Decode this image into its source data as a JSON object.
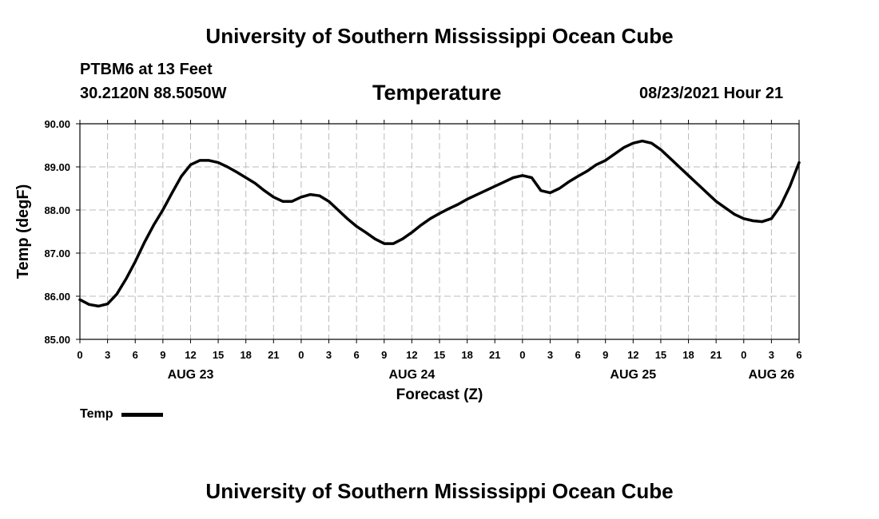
{
  "header": {
    "title_top": "University of Southern Mississippi Ocean Cube",
    "station": "PTBM6 at 13 Feet",
    "coords": "30.2120N  88.5050W",
    "chart_title": "Temperature",
    "datetime": "08/23/2021 Hour 21"
  },
  "footer": {
    "title_bottom": "University of Southern Mississippi Ocean Cube"
  },
  "legend": {
    "label": "Temp"
  },
  "chart_data": {
    "type": "line",
    "title": "Temperature",
    "xlabel": "Forecast (Z)",
    "ylabel": "Temp (degF)",
    "x_unit": "hours since AUG 23 00Z",
    "xlim": [
      0,
      78
    ],
    "ylim": [
      85,
      90
    ],
    "grid": true,
    "y_ticks": [
      "85.00",
      "86.00",
      "87.00",
      "88.00",
      "89.00",
      "90.00"
    ],
    "x_ticks": [
      {
        "x": 0,
        "label": "0"
      },
      {
        "x": 3,
        "label": "3"
      },
      {
        "x": 6,
        "label": "6"
      },
      {
        "x": 9,
        "label": "9"
      },
      {
        "x": 12,
        "label": "12"
      },
      {
        "x": 15,
        "label": "15"
      },
      {
        "x": 18,
        "label": "18"
      },
      {
        "x": 21,
        "label": "21"
      },
      {
        "x": 24,
        "label": "0"
      },
      {
        "x": 27,
        "label": "3"
      },
      {
        "x": 30,
        "label": "6"
      },
      {
        "x": 33,
        "label": "9"
      },
      {
        "x": 36,
        "label": "12"
      },
      {
        "x": 39,
        "label": "15"
      },
      {
        "x": 42,
        "label": "18"
      },
      {
        "x": 45,
        "label": "21"
      },
      {
        "x": 48,
        "label": "0"
      },
      {
        "x": 51,
        "label": "3"
      },
      {
        "x": 54,
        "label": "6"
      },
      {
        "x": 57,
        "label": "9"
      },
      {
        "x": 60,
        "label": "12"
      },
      {
        "x": 63,
        "label": "15"
      },
      {
        "x": 66,
        "label": "18"
      },
      {
        "x": 69,
        "label": "21"
      },
      {
        "x": 72,
        "label": "0"
      },
      {
        "x": 75,
        "label": "3"
      },
      {
        "x": 78,
        "label": "6"
      }
    ],
    "date_labels": [
      {
        "x": 12,
        "label": "AUG 23"
      },
      {
        "x": 36,
        "label": "AUG 24"
      },
      {
        "x": 60,
        "label": "AUG 25"
      },
      {
        "x": 75,
        "label": "AUG 26"
      }
    ],
    "series": [
      {
        "name": "Temp",
        "color": "#000000",
        "points": [
          [
            0,
            85.92
          ],
          [
            1,
            85.81
          ],
          [
            2,
            85.77
          ],
          [
            3,
            85.82
          ],
          [
            4,
            86.05
          ],
          [
            5,
            86.4
          ],
          [
            6,
            86.8
          ],
          [
            7,
            87.25
          ],
          [
            8,
            87.65
          ],
          [
            9,
            88.0
          ],
          [
            10,
            88.4
          ],
          [
            11,
            88.78
          ],
          [
            12,
            89.05
          ],
          [
            13,
            89.15
          ],
          [
            14,
            89.15
          ],
          [
            15,
            89.1
          ],
          [
            16,
            89.0
          ],
          [
            17,
            88.88
          ],
          [
            18,
            88.75
          ],
          [
            19,
            88.62
          ],
          [
            20,
            88.45
          ],
          [
            21,
            88.3
          ],
          [
            22,
            88.2
          ],
          [
            23,
            88.2
          ],
          [
            24,
            88.3
          ],
          [
            25,
            88.36
          ],
          [
            26,
            88.33
          ],
          [
            27,
            88.2
          ],
          [
            28,
            88.0
          ],
          [
            29,
            87.8
          ],
          [
            30,
            87.62
          ],
          [
            31,
            87.48
          ],
          [
            32,
            87.33
          ],
          [
            33,
            87.22
          ],
          [
            34,
            87.22
          ],
          [
            35,
            87.33
          ],
          [
            36,
            87.48
          ],
          [
            37,
            87.65
          ],
          [
            38,
            87.8
          ],
          [
            39,
            87.92
          ],
          [
            40,
            88.03
          ],
          [
            41,
            88.13
          ],
          [
            42,
            88.25
          ],
          [
            43,
            88.35
          ],
          [
            44,
            88.45
          ],
          [
            45,
            88.55
          ],
          [
            46,
            88.65
          ],
          [
            47,
            88.75
          ],
          [
            48,
            88.8
          ],
          [
            49,
            88.75
          ],
          [
            50,
            88.45
          ],
          [
            51,
            88.4
          ],
          [
            52,
            88.5
          ],
          [
            53,
            88.65
          ],
          [
            54,
            88.78
          ],
          [
            55,
            88.9
          ],
          [
            56,
            89.05
          ],
          [
            57,
            89.15
          ],
          [
            58,
            89.3
          ],
          [
            59,
            89.45
          ],
          [
            60,
            89.55
          ],
          [
            61,
            89.6
          ],
          [
            62,
            89.55
          ],
          [
            63,
            89.4
          ],
          [
            64,
            89.2
          ],
          [
            65,
            89.0
          ],
          [
            66,
            88.8
          ],
          [
            67,
            88.6
          ],
          [
            68,
            88.4
          ],
          [
            69,
            88.2
          ],
          [
            70,
            88.05
          ],
          [
            71,
            87.9
          ],
          [
            72,
            87.8
          ],
          [
            73,
            87.75
          ],
          [
            74,
            87.73
          ],
          [
            75,
            87.8
          ],
          [
            76,
            88.1
          ],
          [
            77,
            88.55
          ],
          [
            78,
            89.1
          ]
        ]
      }
    ]
  }
}
